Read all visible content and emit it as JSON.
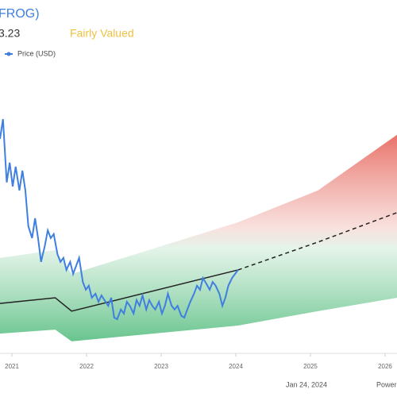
{
  "chart_data": {
    "type": "line",
    "title": "FROG)",
    "price_text": "3.23",
    "valuation": "Fairly Valued",
    "date_note": "Jan 24, 2024",
    "credit": "Powered",
    "xlim": [
      2020.84,
      2026.16
    ],
    "ylim": [
      10,
      100
    ],
    "xticks": [
      2021,
      2022,
      2023,
      2024,
      2025,
      2026
    ],
    "series": [
      {
        "name": "Price (USD)",
        "color": "#3f7fe0",
        "x": [
          2020.84,
          2020.88,
          2020.93,
          2020.97,
          2021.01,
          2021.05,
          2021.1,
          2021.14,
          2021.18,
          2021.22,
          2021.27,
          2021.31,
          2021.35,
          2021.39,
          2021.44,
          2021.48,
          2021.52,
          2021.56,
          2021.61,
          2021.65,
          2021.69,
          2021.73,
          2021.78,
          2021.82,
          2021.86,
          2021.9,
          2021.95,
          2021.99,
          2022.03,
          2022.07,
          2022.12,
          2022.16,
          2022.2,
          2022.24,
          2022.29,
          2022.33,
          2022.37,
          2022.41,
          2022.46,
          2022.5,
          2022.54,
          2022.58,
          2022.63,
          2022.67,
          2022.71,
          2022.75,
          2022.8,
          2022.84,
          2022.88,
          2022.92,
          2022.97,
          2023.01,
          2023.05,
          2023.09,
          2023.14,
          2023.18,
          2023.22,
          2023.27,
          2023.31,
          2023.35,
          2023.39,
          2023.44,
          2023.48,
          2023.52,
          2023.56,
          2023.61,
          2023.65,
          2023.69,
          2023.73,
          2023.78,
          2023.82,
          2023.86,
          2023.9,
          2023.95,
          2023.99,
          2024.03
        ],
        "values": [
          72.8,
          78.7,
          59.8,
          65.7,
          58.6,
          64.5,
          57.4,
          63.3,
          57.4,
          46.7,
          43.2,
          49.1,
          43.2,
          36.1,
          40.8,
          45.5,
          43.2,
          44.4,
          38.4,
          36.1,
          37.3,
          33.7,
          36.1,
          32.5,
          34.9,
          37.3,
          30.1,
          27.8,
          29.0,
          25.4,
          26.6,
          24.2,
          26.1,
          24.7,
          23.0,
          25.4,
          19.5,
          19.0,
          21.9,
          20.7,
          24.2,
          23.0,
          20.7,
          24.7,
          23.0,
          26.1,
          21.9,
          24.7,
          23.0,
          21.9,
          24.2,
          20.7,
          23.0,
          26.6,
          23.0,
          21.9,
          23.0,
          20.0,
          19.5,
          21.9,
          24.2,
          26.6,
          29.0,
          27.8,
          31.3,
          29.4,
          27.8,
          30.1,
          29.0,
          26.6,
          23.0,
          25.4,
          29.0,
          31.3,
          32.5,
          33.7
        ]
      },
      {
        "color": "#222222",
        "x": [
          2020.84,
          2021.58,
          2021.8,
          2024.03,
          2025.1,
          2026.16
        ],
        "values": [
          23.7,
          25.4,
          21.4,
          33.7,
          null,
          null
        ]
      },
      {
        "color": "#222222",
        "dashed": true,
        "x": [
          2020.84,
          2021.58,
          2021.8,
          2024.03,
          2025.1,
          2026.16
        ],
        "values": [
          null,
          null,
          null,
          33.7,
          42.0,
          50.8
        ]
      },
      {
        "color": "#e45a4f",
        "x": [
          2020.84,
          2021.58,
          2021.8,
          2024.03,
          2025.1,
          2026.16
        ],
        "values": [
          37.3,
          39.6,
          32.5,
          47.9,
          57.4,
          74.0
        ]
      },
      {
        "color": "#4dba7a",
        "x": [
          2020.84,
          2021.58,
          2021.8,
          2024.03,
          2025.1,
          2026.16
        ],
        "values": [
          14.7,
          15.9,
          12.4,
          17.1,
          21.4,
          25.4
        ]
      }
    ]
  }
}
